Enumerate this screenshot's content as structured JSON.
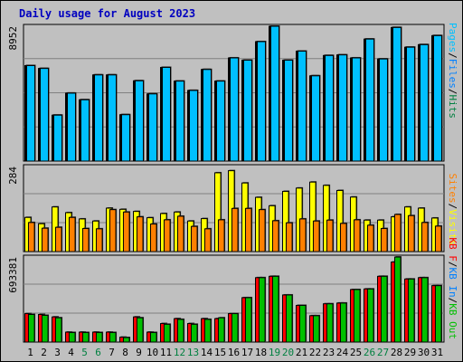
{
  "title": "Daily usage for August 2023",
  "colors": {
    "pages": "#00c0ff",
    "files": "#0080ff",
    "hits": "#008040",
    "visits": "#ffff00",
    "sites": "#ff8000",
    "kbf": "#ff0000",
    "kbin": "#0080ff",
    "kbout": "#00c000",
    "day_weekday": "#000000",
    "day_weekend": "#008040",
    "title": "#0000c0",
    "panel": "#c0c0c0"
  },
  "chart_data": [
    {
      "type": "bar",
      "name": "hits-panel",
      "categories": [
        "1",
        "2",
        "3",
        "4",
        "5",
        "6",
        "7",
        "8",
        "9",
        "10",
        "11",
        "12",
        "13",
        "14",
        "15",
        "16",
        "17",
        "18",
        "19",
        "20",
        "21",
        "22",
        "23",
        "24",
        "25",
        "26",
        "27",
        "28",
        "29",
        "30",
        "31"
      ],
      "weekend_days": [
        "5",
        "6",
        "12",
        "13",
        "19",
        "20",
        "26",
        "27"
      ],
      "ymax_label": "8952",
      "ylim": [
        0,
        8952
      ],
      "legend": {
        "pages": "Pages",
        "sep1": "/",
        "files": "Files",
        "sep2": "/",
        "hits": "Hits"
      },
      "series": [
        {
          "name": "Hits",
          "values": [
            6340,
            6150,
            3050,
            4510,
            4070,
            5720,
            5720,
            3080,
            5330,
            4460,
            6220,
            5310,
            4690,
            6080,
            5310,
            6850,
            6700,
            7930,
            8950,
            6700,
            7300,
            5660,
            7010,
            7050,
            6850,
            8100,
            6780,
            8870,
            7560,
            7730,
            8330
          ]
        },
        {
          "name": "Files",
          "values": [
            6340,
            6150,
            3050,
            4510,
            4070,
            5720,
            5720,
            3080,
            5330,
            4460,
            6220,
            5310,
            4690,
            6080,
            5310,
            6850,
            6700,
            7930,
            8950,
            6700,
            7300,
            5660,
            7010,
            7050,
            6850,
            8100,
            6780,
            8870,
            7560,
            7730,
            8330
          ]
        },
        {
          "name": "Pages",
          "values": [
            6340,
            6150,
            3050,
            4510,
            4070,
            5720,
            5720,
            3080,
            5330,
            4460,
            6220,
            5310,
            4690,
            6080,
            5310,
            6850,
            6700,
            7930,
            8950,
            6700,
            7300,
            5660,
            7010,
            7050,
            6850,
            8100,
            6780,
            8870,
            7560,
            7730,
            8330
          ]
        }
      ]
    },
    {
      "type": "bar",
      "name": "visits-panel",
      "categories": [
        "1",
        "2",
        "3",
        "4",
        "5",
        "6",
        "7",
        "8",
        "9",
        "10",
        "11",
        "12",
        "13",
        "14",
        "15",
        "16",
        "17",
        "18",
        "19",
        "20",
        "21",
        "22",
        "23",
        "24",
        "25",
        "26",
        "27",
        "28",
        "29",
        "30",
        "31"
      ],
      "ymax_label": "284",
      "ylim": [
        0,
        284
      ],
      "legend": {
        "sites": "Sites",
        "sep": "/",
        "visits": "Visits"
      },
      "series": [
        {
          "name": "Visits",
          "values": [
            114,
            93,
            149,
            130,
            109,
            102,
            145,
            141,
            134,
            113,
            127,
            132,
            102,
            110,
            263,
            270,
            229,
            181,
            153,
            201,
            212,
            232,
            221,
            204,
            182,
            105,
            105,
            116,
            149,
            145,
            112
          ]
        },
        {
          "name": "Sites",
          "values": [
            97,
            78,
            81,
            114,
            77,
            76,
            140,
            132,
            116,
            92,
            106,
            118,
            84,
            76,
            106,
            144,
            144,
            140,
            103,
            96,
            109,
            102,
            105,
            94,
            106,
            88,
            77,
            124,
            120,
            97,
            85
          ]
        }
      ]
    },
    {
      "type": "bar",
      "name": "kbytes-panel",
      "categories": [
        "1",
        "2",
        "3",
        "4",
        "5",
        "6",
        "7",
        "8",
        "9",
        "10",
        "11",
        "12",
        "13",
        "14",
        "15",
        "16",
        "17",
        "18",
        "19",
        "20",
        "21",
        "22",
        "23",
        "24",
        "25",
        "26",
        "27",
        "28",
        "29",
        "30",
        "31"
      ],
      "ymax_label": "693381",
      "ylim": [
        0,
        693381
      ],
      "legend": {
        "kbf": "KB F",
        "sep1": "/",
        "kbin": "KB In",
        "sep2": "/",
        "kbout": "KB Out"
      },
      "series": [
        {
          "name": "KB F",
          "values": [
            232000,
            225000,
            205000,
            81000,
            81000,
            81000,
            81000,
            40000,
            205000,
            81000,
            151000,
            191000,
            151000,
            191000,
            191000,
            232000,
            362000,
            525000,
            536000,
            384000,
            299000,
            215000,
            312000,
            318000,
            428000,
            433000,
            536000,
            652000,
            514000,
            525000,
            460000
          ]
        },
        {
          "name": "KB Out",
          "values": [
            225000,
            218000,
            198000,
            78000,
            78000,
            78000,
            78000,
            37000,
            198000,
            78000,
            145000,
            185000,
            145000,
            185000,
            198000,
            232000,
            362000,
            525000,
            536000,
            384000,
            299000,
            215000,
            312000,
            318000,
            428000,
            433000,
            536000,
            693000,
            514000,
            525000,
            460000
          ]
        }
      ]
    }
  ]
}
